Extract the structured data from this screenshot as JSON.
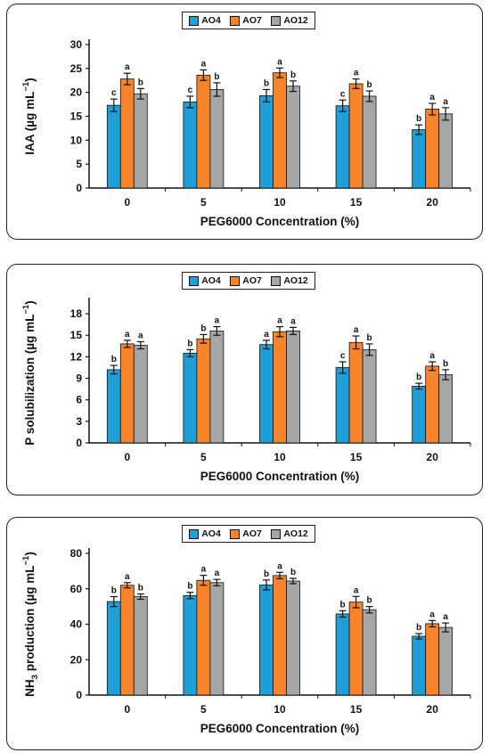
{
  "colors": {
    "AO4": "#1f9fd8",
    "AO7": "#f7842a",
    "AO12": "#a6a6a6"
  },
  "chart_data": [
    {
      "type": "bar",
      "categories": [
        "0",
        "5",
        "10",
        "15",
        "20"
      ],
      "series": [
        {
          "name": "AO4",
          "values": [
            17.3,
            18.0,
            19.3,
            17.2,
            12.2
          ],
          "errors": [
            1.3,
            1.2,
            1.3,
            1.2,
            1.0
          ],
          "letters": [
            "c",
            "c",
            "b",
            "c",
            "b"
          ]
        },
        {
          "name": "AO7",
          "values": [
            22.8,
            23.6,
            24.1,
            21.8,
            16.5
          ],
          "errors": [
            1.2,
            1.1,
            1.0,
            1.0,
            1.2
          ],
          "letters": [
            "a",
            "a",
            "a",
            "a",
            "a"
          ]
        },
        {
          "name": "AO12",
          "values": [
            19.7,
            20.6,
            21.3,
            19.2,
            15.5
          ],
          "errors": [
            1.1,
            1.4,
            1.1,
            1.1,
            1.3
          ],
          "letters": [
            "b",
            "b",
            "b",
            "b",
            "a"
          ]
        }
      ],
      "xlabel": "PEG6000 Concentration  (%)",
      "ylabel_parts": {
        "main": "IAA (µg mL",
        "sup": "−1",
        "end": ")"
      },
      "ylim": [
        0,
        30
      ],
      "yticks": [
        "0",
        "5",
        "10",
        "15",
        "20",
        "25",
        "30"
      ],
      "legend_position": "top-center"
    },
    {
      "type": "bar",
      "categories": [
        "0",
        "5",
        "10",
        "15",
        "20"
      ],
      "series": [
        {
          "name": "AO4",
          "values": [
            10.2,
            12.5,
            13.7,
            10.5,
            7.9
          ],
          "errors": [
            0.6,
            0.5,
            0.6,
            0.8,
            0.4
          ],
          "letters": [
            "b",
            "b",
            "a",
            "c",
            "b"
          ]
        },
        {
          "name": "AO7",
          "values": [
            13.8,
            14.5,
            15.5,
            14.0,
            10.7
          ],
          "errors": [
            0.5,
            0.6,
            0.7,
            0.9,
            0.6
          ],
          "letters": [
            "a",
            "b",
            "a",
            "a",
            "a"
          ]
        },
        {
          "name": "AO12",
          "values": [
            13.6,
            15.6,
            15.6,
            13.0,
            9.5
          ],
          "errors": [
            0.5,
            0.6,
            0.5,
            0.8,
            0.7
          ],
          "letters": [
            "a",
            "a",
            "a",
            "b",
            "b"
          ]
        }
      ],
      "xlabel": "PEG6000 Concentration  (%)",
      "ylabel_parts": {
        "main": "P solubilization (µg mL",
        "sup": "−1",
        "end": ")"
      },
      "ylim": [
        0,
        19.5
      ],
      "yticks": [
        "0",
        "3",
        "6",
        "9",
        "12",
        "15",
        "18"
      ],
      "legend_position": "top-center"
    },
    {
      "type": "bar",
      "categories": [
        "0",
        "5",
        "10",
        "15",
        "20"
      ],
      "series": [
        {
          "name": "AO4",
          "values": [
            52.8,
            56.2,
            62.2,
            45.8,
            33.2
          ],
          "errors": [
            2.8,
            1.8,
            2.8,
            1.8,
            1.5
          ],
          "letters": [
            "b",
            "b",
            "b",
            "b",
            "b"
          ]
        },
        {
          "name": "AO7",
          "values": [
            62.0,
            64.8,
            67.5,
            52.5,
            40.3
          ],
          "errors": [
            1.5,
            2.8,
            1.8,
            3.2,
            1.8
          ],
          "letters": [
            "a",
            "a",
            "a",
            "a",
            "a"
          ]
        },
        {
          "name": "AO12",
          "values": [
            55.6,
            63.5,
            64.4,
            48.2,
            38.2
          ],
          "errors": [
            1.5,
            1.8,
            1.5,
            1.8,
            2.5
          ],
          "letters": [
            "b",
            "a",
            "b",
            "b",
            "a"
          ]
        }
      ],
      "xlabel": "PEG6000 Concentration  (%)",
      "ylabel_parts": {
        "pre": "NH",
        "sub": "3",
        "main": " production (µg mL",
        "sup": "−1",
        "end": ")"
      },
      "ylim": [
        0,
        80
      ],
      "yticks": [
        "0",
        "20",
        "40",
        "60",
        "80"
      ],
      "legend_position": "top-center"
    }
  ]
}
